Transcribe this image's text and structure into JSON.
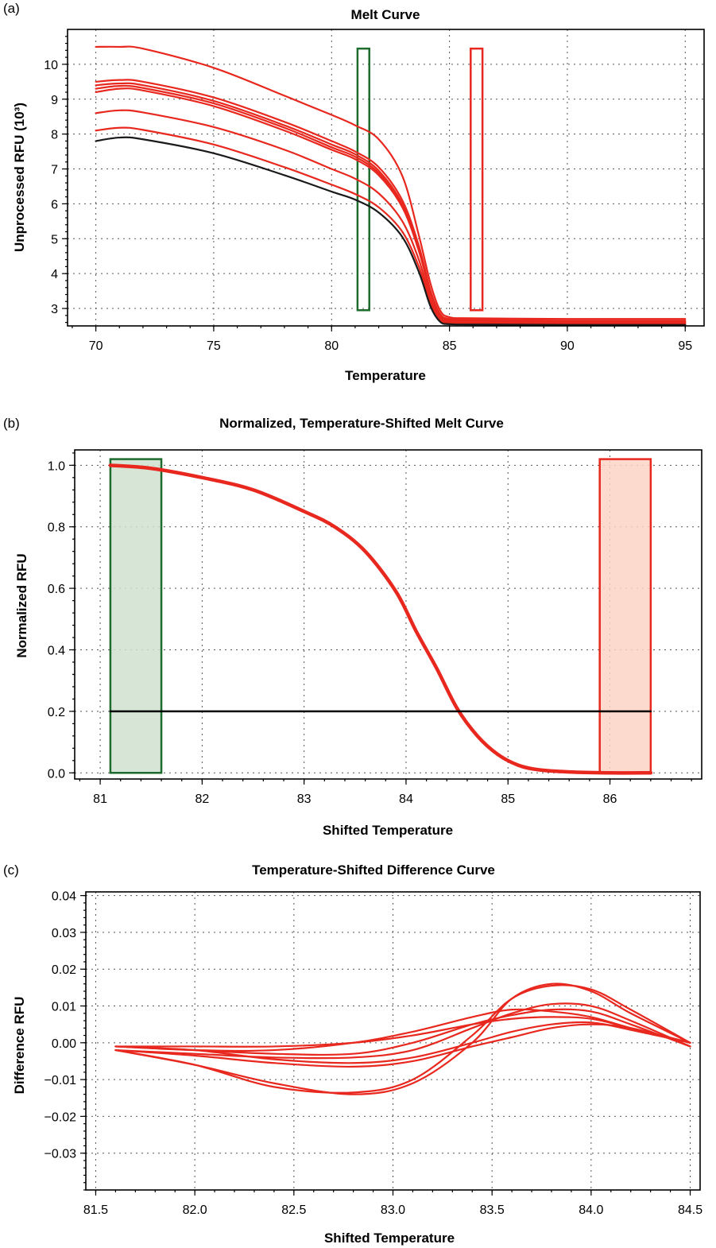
{
  "panels": [
    {
      "label": "(a)",
      "chart_data": {
        "type": "line",
        "title": "Melt Curve",
        "xlabel": "Temperature",
        "ylabel": "Unprocessed RFU (10³)",
        "xlim": [
          68.8,
          95.8
        ],
        "ylim": [
          2.5,
          11.0
        ],
        "xticks": [
          70,
          75,
          80,
          85,
          90,
          95
        ],
        "yticks": [
          3,
          4,
          5,
          6,
          7,
          8,
          9,
          10
        ],
        "grid": true,
        "series": [
          {
            "color": "#e8281e",
            "x": [
              70,
              71,
              72,
              75,
              78,
              80,
              81,
              82,
              83,
              83.7,
              84.2,
              84.6,
              85,
              86,
              90,
              95
            ],
            "y": [
              10.5,
              10.5,
              10.45,
              9.9,
              9.1,
              8.55,
              8.25,
              7.85,
              6.8,
              5.1,
              3.7,
              2.95,
              2.75,
              2.72,
              2.7,
              2.7
            ]
          },
          {
            "color": "#e8281e",
            "x": [
              70,
              71,
              72,
              75,
              78,
              80,
              81,
              82,
              83,
              83.7,
              84.2,
              84.6,
              85,
              86,
              90,
              95
            ],
            "y": [
              9.5,
              9.55,
              9.5,
              9.05,
              8.35,
              7.8,
              7.5,
              7.05,
              6.1,
              4.8,
              3.5,
              2.85,
              2.7,
              2.68,
              2.65,
              2.65
            ]
          },
          {
            "color": "#e8281e",
            "x": [
              70,
              71,
              72,
              75,
              78,
              80,
              81,
              82,
              83,
              83.7,
              84.2,
              84.6,
              85,
              86,
              90,
              95
            ],
            "y": [
              9.4,
              9.45,
              9.4,
              8.95,
              8.25,
              7.7,
              7.42,
              6.95,
              6.0,
              4.75,
              3.45,
              2.82,
              2.68,
              2.66,
              2.63,
              2.62
            ]
          },
          {
            "color": "#e8281e",
            "x": [
              70,
              71,
              72,
              75,
              78,
              80,
              81,
              82,
              83,
              83.7,
              84.2,
              84.6,
              85,
              86,
              90,
              95
            ],
            "y": [
              9.3,
              9.38,
              9.32,
              8.88,
              8.18,
              7.62,
              7.35,
              6.88,
              5.95,
              4.7,
              3.42,
              2.8,
              2.66,
              2.64,
              2.61,
              2.6
            ]
          },
          {
            "color": "#e8281e",
            "x": [
              70,
              71,
              72,
              75,
              78,
              80,
              81,
              82,
              83,
              83.7,
              84.2,
              84.6,
              85,
              86,
              90,
              95
            ],
            "y": [
              9.2,
              9.3,
              9.25,
              8.8,
              8.1,
              7.55,
              7.28,
              6.82,
              5.9,
              4.65,
              3.4,
              2.78,
              2.64,
              2.62,
              2.59,
              2.58
            ]
          },
          {
            "color": "#e8281e",
            "x": [
              70,
              71,
              72,
              75,
              78,
              80,
              81,
              82,
              83,
              83.7,
              84.2,
              84.6,
              85,
              86,
              90,
              95
            ],
            "y": [
              8.6,
              8.68,
              8.62,
              8.2,
              7.55,
              7.0,
              6.72,
              6.3,
              5.5,
              4.4,
              3.25,
              2.72,
              2.6,
              2.58,
              2.55,
              2.55
            ]
          },
          {
            "color": "#e8281e",
            "x": [
              70,
              71,
              72,
              75,
              78,
              80,
              81,
              82,
              83,
              83.7,
              84.2,
              84.6,
              85,
              86,
              90,
              95
            ],
            "y": [
              8.1,
              8.18,
              8.12,
              7.7,
              7.05,
              6.55,
              6.28,
              5.9,
              5.2,
              4.2,
              3.15,
              2.68,
              2.58,
              2.56,
              2.54,
              2.54
            ]
          },
          {
            "color": "#1a1a1a",
            "x": [
              70,
              71,
              72,
              75,
              78,
              80,
              81,
              82,
              83,
              83.7,
              84.2,
              84.6,
              85,
              86,
              90,
              95
            ],
            "y": [
              7.8,
              7.9,
              7.85,
              7.45,
              6.82,
              6.35,
              6.12,
              5.75,
              5.05,
              4.05,
              3.05,
              2.62,
              2.55,
              2.54,
              2.53,
              2.53
            ]
          }
        ],
        "regions": [
          {
            "from": 81.1,
            "to": 81.6,
            "ymin": 2.95,
            "ymax": 10.45,
            "stroke": "#1e6b2e",
            "fill": "none"
          },
          {
            "from": 85.9,
            "to": 86.4,
            "ymin": 2.95,
            "ymax": 10.45,
            "stroke": "#e8281e",
            "fill": "none"
          }
        ]
      }
    },
    {
      "label": "(b)",
      "chart_data": {
        "type": "line",
        "title": "Normalized, Temperature-Shifted Melt Curve",
        "xlabel": "Shifted Temperature",
        "ylabel": "Normalized RFU",
        "xlim": [
          80.75,
          86.9
        ],
        "ylim": [
          -0.02,
          1.05
        ],
        "xticks": [
          81,
          82,
          83,
          84,
          85,
          86
        ],
        "yticks": [
          0.0,
          0.2,
          0.4,
          0.6,
          0.8,
          1.0
        ],
        "ytick_labels": [
          "0.0",
          "0.2",
          "0.4",
          "0.6",
          "0.8",
          "1.0"
        ],
        "grid": true,
        "series": [
          {
            "color": "#e8281e",
            "x": [
              81.1,
              81.5,
              82,
              82.5,
              83,
              83.3,
              83.6,
              83.9,
              84.1,
              84.3,
              84.5,
              84.7,
              84.9,
              85.1,
              85.3,
              85.6,
              86,
              86.4
            ],
            "y": [
              1.0,
              0.99,
              0.96,
              0.92,
              0.85,
              0.8,
              0.72,
              0.59,
              0.46,
              0.34,
              0.21,
              0.12,
              0.06,
              0.025,
              0.01,
              0.003,
              0.0,
              0.0
            ],
            "width": 4.5
          },
          {
            "color": "#000000",
            "x": [
              81.1,
              86.4
            ],
            "y": [
              0.2,
              0.2
            ],
            "width": 2.5
          }
        ],
        "regions": [
          {
            "from": 81.1,
            "to": 81.6,
            "ymin": 0.0,
            "ymax": 1.02,
            "stroke": "#1e6b2e",
            "fill": "#cfe0cf"
          },
          {
            "from": 85.9,
            "to": 86.4,
            "ymin": 0.0,
            "ymax": 1.02,
            "stroke": "#e8281e",
            "fill": "#fbd3c5"
          }
        ]
      }
    },
    {
      "label": "(c)",
      "chart_data": {
        "type": "line",
        "title": "Temperature-Shifted Difference Curve",
        "xlabel": "Shifted Temperature",
        "ylabel": "Difference RFU",
        "xlim": [
          81.45,
          84.55
        ],
        "ylim": [
          -0.04,
          0.041
        ],
        "xticks": [
          81.5,
          82.0,
          82.5,
          83.0,
          83.5,
          84.0,
          84.5
        ],
        "xtick_labels": [
          "81.5",
          "82.0",
          "82.5",
          "83.0",
          "83.5",
          "84.0",
          "84.5"
        ],
        "yticks": [
          -0.03,
          -0.02,
          -0.01,
          0.0,
          0.01,
          0.02,
          0.03,
          0.04
        ],
        "ytick_labels": [
          "−0.03",
          "−0.02",
          "−0.01",
          "0.00",
          "0.01",
          "0.02",
          "0.03",
          "0.04"
        ],
        "grid": true,
        "series": [
          {
            "color": "#e8281e",
            "x": [
              81.6,
              82.0,
              82.4,
              82.8,
              83.1,
              83.4,
              83.6,
              83.8,
              84.0,
              84.2,
              84.5
            ],
            "y": [
              -0.002,
              -0.006,
              -0.011,
              -0.014,
              -0.011,
              0.0,
              0.012,
              0.016,
              0.014,
              0.008,
              0.0
            ]
          },
          {
            "color": "#e8281e",
            "x": [
              81.6,
              82.0,
              82.4,
              82.8,
              83.1,
              83.4,
              83.6,
              83.8,
              84.0,
              84.2,
              84.5
            ],
            "y": [
              -0.002,
              -0.006,
              -0.012,
              -0.0135,
              -0.01,
              0.002,
              0.012,
              0.0155,
              0.0145,
              0.009,
              0.0
            ]
          },
          {
            "color": "#e8281e",
            "x": [
              81.6,
              82.0,
              82.4,
              82.8,
              83.1,
              83.4,
              83.6,
              83.8,
              84.0,
              84.2,
              84.5
            ],
            "y": [
              -0.002,
              -0.003,
              -0.004,
              -0.004,
              -0.002,
              0.004,
              0.008,
              0.0105,
              0.01,
              0.006,
              -0.001
            ]
          },
          {
            "color": "#e8281e",
            "x": [
              81.6,
              82.0,
              82.4,
              82.8,
              83.1,
              83.4,
              83.6,
              83.8,
              84.0,
              84.2,
              84.5
            ],
            "y": [
              -0.001,
              -0.002,
              -0.003,
              -0.003,
              0.0,
              0.005,
              0.0075,
              0.009,
              0.0085,
              0.005,
              -0.001
            ]
          },
          {
            "color": "#e8281e",
            "x": [
              81.6,
              82.0,
              82.4,
              82.8,
              83.1,
              83.4,
              83.6,
              83.8,
              84.0,
              84.2,
              84.5
            ],
            "y": [
              -0.001,
              -0.002,
              -0.002,
              0.0,
              0.003,
              0.007,
              0.009,
              0.0085,
              0.007,
              0.004,
              0.0
            ]
          },
          {
            "color": "#e8281e",
            "x": [
              81.6,
              82.0,
              82.4,
              82.8,
              83.1,
              83.4,
              83.6,
              83.8,
              84.0,
              84.2,
              84.5
            ],
            "y": [
              -0.001,
              -0.001,
              -0.001,
              0.0,
              0.002,
              0.005,
              0.0065,
              0.007,
              0.0065,
              0.004,
              0.0
            ]
          },
          {
            "color": "#e8281e",
            "x": [
              81.6,
              82.0,
              82.4,
              82.8,
              83.1,
              83.4,
              83.6,
              83.8,
              84.0,
              84.2,
              84.5
            ],
            "y": [
              -0.001,
              -0.002,
              -0.0045,
              -0.0055,
              -0.004,
              0.0,
              0.003,
              0.005,
              0.0055,
              0.0035,
              0.0
            ]
          },
          {
            "color": "#e8281e",
            "x": [
              81.6,
              82.0,
              82.4,
              82.8,
              83.1,
              83.4,
              83.6,
              83.8,
              84.0,
              84.2,
              84.5
            ],
            "y": [
              -0.002,
              -0.0035,
              -0.0055,
              -0.0065,
              -0.005,
              -0.001,
              0.0015,
              0.004,
              0.005,
              0.004,
              0.0
            ]
          }
        ],
        "regions": []
      }
    }
  ]
}
